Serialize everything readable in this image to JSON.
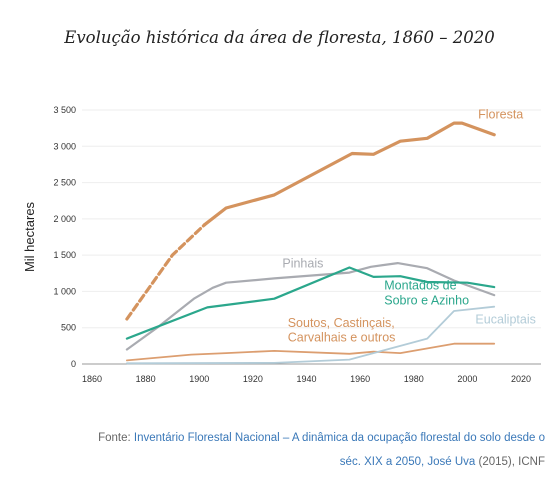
{
  "title": "Evolução histórica da área de floresta, 1860 – 2020",
  "source": {
    "prefix": "Fonte: ",
    "link1": "Inventário Florestal Nacional",
    "sep": "  –  ",
    "link2": "A dinâmica da ocupação florestal do solo desde o",
    "link3": "séc. XIX a 2050, José Uva",
    "suffix": " (2015), ICNF"
  },
  "chart_data": {
    "type": "line",
    "ylabel": "Mil hectares",
    "xlim": [
      1860,
      2020
    ],
    "ylim": [
      0,
      3500
    ],
    "x_ticks": [
      1860,
      1880,
      1900,
      1920,
      1940,
      1960,
      1980,
      2000,
      2020
    ],
    "y_ticks": [
      0,
      500,
      1000,
      1500,
      2000,
      2500,
      3000,
      3500
    ],
    "y_tick_labels": [
      "0",
      "500",
      "1 000",
      "1 500",
      "2 000",
      "2 500",
      "3 000",
      "3 500"
    ],
    "grid": "horizontal",
    "series": [
      {
        "name": "Floresta",
        "color": "#d4935e",
        "width": 3.2,
        "dashed_until": 1902,
        "points": [
          [
            1873,
            620
          ],
          [
            1890,
            1500
          ],
          [
            1902,
            1920
          ],
          [
            1910,
            2150
          ],
          [
            1928,
            2330
          ],
          [
            1957,
            2900
          ],
          [
            1965,
            2890
          ],
          [
            1975,
            3070
          ],
          [
            1985,
            3110
          ],
          [
            1995,
            3320
          ],
          [
            1998,
            3320
          ],
          [
            2010,
            3160
          ]
        ]
      },
      {
        "name": "Pinhais",
        "color": "#a9abb1",
        "width": 2.2,
        "points": [
          [
            1873,
            200
          ],
          [
            1885,
            520
          ],
          [
            1898,
            900
          ],
          [
            1905,
            1050
          ],
          [
            1910,
            1120
          ],
          [
            1928,
            1180
          ],
          [
            1956,
            1260
          ],
          [
            1964,
            1340
          ],
          [
            1974,
            1390
          ],
          [
            1985,
            1320
          ],
          [
            1995,
            1150
          ],
          [
            2010,
            950
          ]
        ]
      },
      {
        "name": "Montados de Sobro e Azinho",
        "color": "#2ba78c",
        "width": 2.2,
        "points": [
          [
            1873,
            350
          ],
          [
            1880,
            450
          ],
          [
            1903,
            780
          ],
          [
            1928,
            900
          ],
          [
            1956,
            1330
          ],
          [
            1965,
            1200
          ],
          [
            1975,
            1210
          ],
          [
            1985,
            1130
          ],
          [
            2000,
            1120
          ],
          [
            2010,
            1060
          ]
        ]
      },
      {
        "name": "Soutos, Castinçais, Carvalhais e outros",
        "color": "#dc9e70",
        "width": 1.8,
        "points": [
          [
            1873,
            50
          ],
          [
            1897,
            130
          ],
          [
            1910,
            150
          ],
          [
            1928,
            180
          ],
          [
            1956,
            140
          ],
          [
            1965,
            170
          ],
          [
            1975,
            150
          ],
          [
            1995,
            280
          ],
          [
            2010,
            280
          ]
        ]
      },
      {
        "name": "Eucaliptais",
        "color": "#b3ccd8",
        "width": 1.8,
        "points": [
          [
            1873,
            10
          ],
          [
            1928,
            15
          ],
          [
            1956,
            60
          ],
          [
            1975,
            250
          ],
          [
            1985,
            350
          ],
          [
            1995,
            730
          ],
          [
            2010,
            790
          ]
        ]
      }
    ],
    "labels": [
      {
        "text": "Floresta",
        "x": 2004,
        "y": 3380,
        "color": "#d4935e"
      },
      {
        "text": "Pinhais",
        "x": 1931,
        "y": 1330,
        "color": "#a9abb1"
      },
      {
        "text": "Montados de",
        "x": 1969,
        "y": 1030,
        "color": "#2ba78c"
      },
      {
        "text": "Sobro e Azinho",
        "x": 1969,
        "y": 820,
        "color": "#2ba78c"
      },
      {
        "text": "Soutos, Castinçais,",
        "x": 1933,
        "y": 510,
        "color": "#d4935e"
      },
      {
        "text": "Carvalhais e outros",
        "x": 1933,
        "y": 310,
        "color": "#d4935e"
      },
      {
        "text": "Eucaliptais",
        "x": 2003,
        "y": 560,
        "color": "#b3ccd8"
      }
    ]
  }
}
